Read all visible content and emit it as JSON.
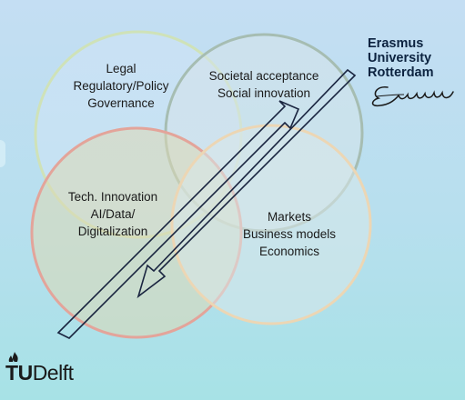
{
  "diagram": {
    "circles": [
      {
        "key": "legal",
        "lines": [
          "Legal",
          "Regulatory/Policy",
          "Governance"
        ],
        "fill": "#cfe4f5",
        "stroke": "#cfe2b8"
      },
      {
        "key": "societal",
        "lines": [
          "Societal acceptance",
          "Social innovation"
        ],
        "fill": "#d6e4e9",
        "stroke": "#a6bdb2"
      },
      {
        "key": "tech",
        "lines": [
          "Tech. Innovation",
          "AI/Data/",
          "Digitalization"
        ],
        "fill": "#dcd9b4",
        "stroke": "#e3a49a"
      },
      {
        "key": "markets",
        "lines": [
          "Markets",
          "Business models",
          "Economics"
        ],
        "fill": "#d8e7ea",
        "stroke": "#ecd6b4"
      }
    ],
    "arrows": [
      {
        "name": "arrow-up-right",
        "direction": "up-right"
      },
      {
        "name": "arrow-down-left",
        "direction": "down-left"
      }
    ],
    "arrow_color": "#1a2540"
  },
  "logos": {
    "erasmus": {
      "lines": [
        "Erasmus",
        "University",
        "Rotterdam"
      ],
      "color": "#0c2340"
    },
    "tudelft": {
      "t": "T",
      "u": "U",
      "delft": "Delft"
    }
  }
}
